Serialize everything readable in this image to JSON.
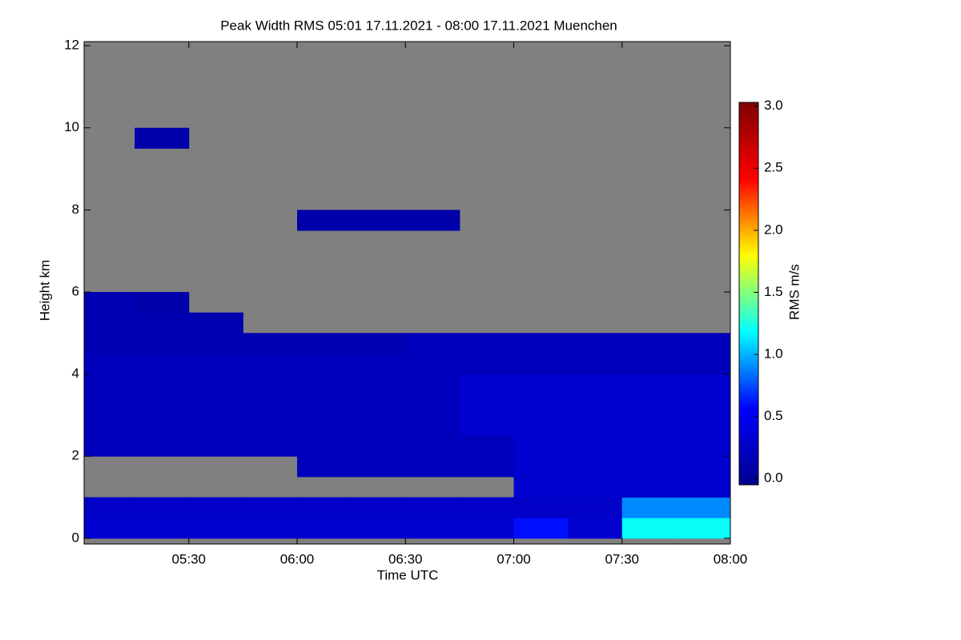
{
  "chart_data": {
    "type": "heatmap",
    "title": "Peak Width RMS   05:01 17.11.2021 - 08:00 17.11.2021 Muenchen",
    "x_label": "Time UTC",
    "y_label": "Height km",
    "colorbar_label": "RMS m/s",
    "xlim": [
      "05:01",
      "08:00"
    ],
    "xticks": [
      "05:30",
      "06:00",
      "06:30",
      "07:00",
      "07:30",
      "08:00"
    ],
    "ylim": [
      -0.14,
      12.1
    ],
    "yticks": [
      0,
      2,
      4,
      6,
      8,
      10,
      12
    ],
    "clim": [
      -0.05,
      3.03
    ],
    "cticks": [
      {
        "value": 0,
        "label": "0.0"
      },
      0.5,
      {
        "value": 1,
        "label": "1.0"
      },
      1.5,
      {
        "value": 2,
        "label": "2.0"
      },
      2.5,
      {
        "value": 3,
        "label": "3.0"
      }
    ],
    "colormap": [
      "#00008f",
      "#0000ff",
      "#00ffff",
      "#ffff00",
      "#ff0000",
      "#800000"
    ],
    "nan_color": "#808080",
    "x": [
      "05:00",
      "05:15",
      "05:30",
      "05:45",
      "06:00",
      "06:15",
      "06:30",
      "06:45",
      "07:00",
      "07:15",
      "07:30",
      "07:45",
      "08:00"
    ],
    "y": [
      0,
      0.5,
      1,
      1.5,
      2,
      2.5,
      3,
      3.5,
      4,
      4.5,
      5,
      5.5,
      6,
      6.5,
      7,
      7.5,
      8,
      8.5,
      9,
      9.5,
      10,
      10.5,
      11,
      11.5,
      12
    ],
    "values": [
      [
        0.3,
        0.3,
        0.3,
        0.3,
        0.3,
        0.3,
        0.3,
        0.3,
        0.6,
        0.3,
        1.2,
        1.2
      ],
      [
        0.25,
        0.25,
        0.25,
        0.25,
        0.25,
        0.25,
        0.25,
        0.25,
        0.25,
        0.25,
        0.9,
        0.9
      ],
      [
        null,
        null,
        null,
        null,
        null,
        null,
        null,
        null,
        0.3,
        0.3,
        0.3,
        0.3
      ],
      [
        null,
        null,
        null,
        null,
        0.2,
        0.2,
        0.2,
        0.2,
        0.3,
        0.3,
        0.3,
        0.3
      ],
      [
        0.2,
        0.2,
        0.2,
        0.2,
        0.2,
        0.2,
        0.2,
        0.2,
        0.3,
        0.3,
        0.3,
        0.3
      ],
      [
        0.2,
        0.2,
        0.2,
        0.2,
        0.2,
        0.2,
        0.2,
        0.3,
        0.3,
        0.3,
        0.3,
        0.3
      ],
      [
        0.2,
        0.2,
        0.2,
        0.2,
        0.2,
        0.2,
        0.2,
        0.3,
        0.3,
        0.3,
        0.3,
        0.3
      ],
      [
        0.2,
        0.2,
        0.2,
        0.2,
        0.2,
        0.2,
        0.2,
        0.3,
        0.3,
        0.3,
        0.3,
        0.3
      ],
      [
        0.2,
        0.2,
        0.2,
        0.2,
        0.2,
        0.2,
        0.2,
        0.2,
        0.2,
        0.2,
        0.2,
        0.2
      ],
      [
        0.15,
        0.15,
        0.15,
        0.15,
        0.15,
        0.15,
        0.2,
        0.2,
        0.2,
        0.2,
        0.2,
        0.2
      ],
      [
        0.15,
        0.15,
        0.15,
        null,
        null,
        null,
        null,
        null,
        null,
        null,
        null,
        null
      ],
      [
        0.15,
        0.1,
        null,
        null,
        null,
        null,
        null,
        null,
        null,
        null,
        null,
        null
      ],
      [
        null,
        null,
        null,
        null,
        null,
        null,
        null,
        null,
        null,
        null,
        null,
        null
      ],
      [
        null,
        null,
        null,
        null,
        null,
        null,
        null,
        null,
        null,
        null,
        null,
        null
      ],
      [
        null,
        null,
        null,
        null,
        null,
        null,
        null,
        null,
        null,
        null,
        null,
        null
      ],
      [
        null,
        null,
        null,
        null,
        0.1,
        0.1,
        0.1,
        null,
        null,
        null,
        null,
        null
      ],
      [
        null,
        null,
        null,
        null,
        null,
        null,
        null,
        null,
        null,
        null,
        null,
        null
      ],
      [
        null,
        null,
        null,
        null,
        null,
        null,
        null,
        null,
        null,
        null,
        null,
        null
      ],
      [
        null,
        null,
        null,
        null,
        null,
        null,
        null,
        null,
        null,
        null,
        null,
        null
      ],
      [
        null,
        0.1,
        null,
        null,
        null,
        null,
        null,
        null,
        null,
        null,
        null,
        null
      ],
      [
        null,
        null,
        null,
        null,
        null,
        null,
        null,
        null,
        null,
        null,
        null,
        null
      ],
      [
        null,
        null,
        null,
        null,
        null,
        null,
        null,
        null,
        null,
        null,
        null,
        null
      ],
      [
        null,
        null,
        null,
        null,
        null,
        null,
        null,
        null,
        null,
        null,
        null,
        null
      ],
      [
        null,
        null,
        null,
        null,
        null,
        null,
        null,
        null,
        null,
        null,
        null,
        null
      ]
    ]
  }
}
